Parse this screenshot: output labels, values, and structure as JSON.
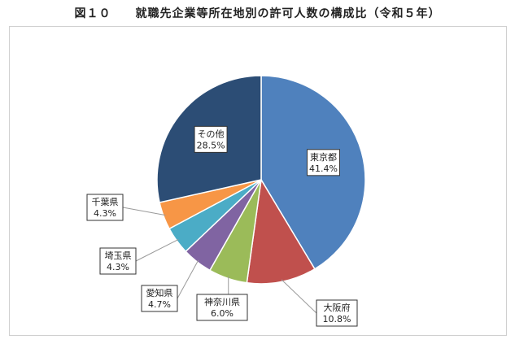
{
  "title": "図１０　　就職先企業等所在地別の許可人数の構成比（令和５年）",
  "chart_data": {
    "type": "pie",
    "slices": [
      {
        "name": "東京都",
        "value": 41.4,
        "label": "41.4%",
        "color": "#4f81bd"
      },
      {
        "name": "大阪府",
        "value": 10.8,
        "label": "10.8%",
        "color": "#c0504d"
      },
      {
        "name": "神奈川県",
        "value": 6.0,
        "label": "6.0%",
        "color": "#9bbb59"
      },
      {
        "name": "愛知県",
        "value": 4.7,
        "label": "4.7%",
        "color": "#8064a2"
      },
      {
        "name": "埼玉県",
        "value": 4.3,
        "label": "4.3%",
        "color": "#4bacc6"
      },
      {
        "name": "千葉県",
        "value": 4.3,
        "label": "4.3%",
        "color": "#f79646"
      },
      {
        "name": "その他",
        "value": 28.5,
        "label": "28.5%",
        "color": "#2c4d75"
      }
    ]
  }
}
